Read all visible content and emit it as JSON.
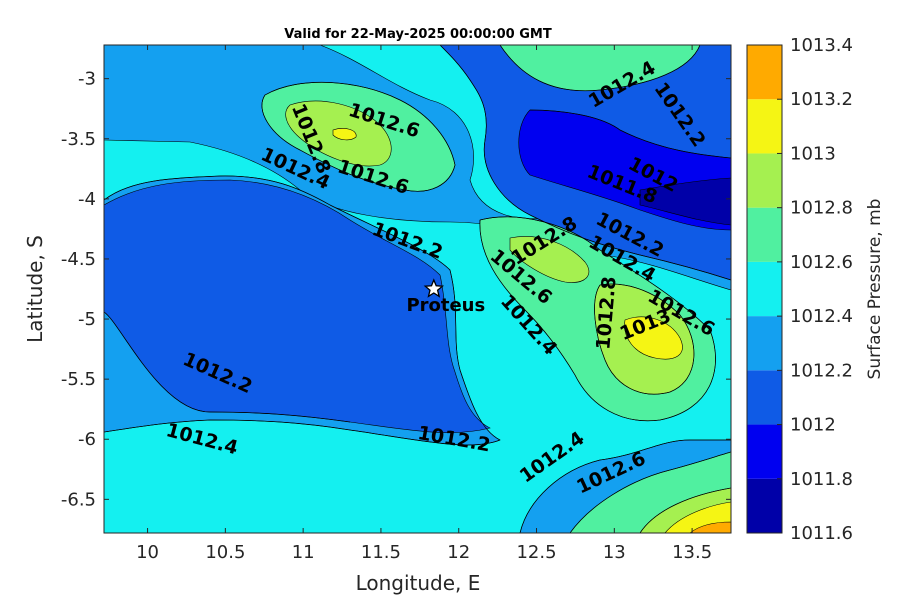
{
  "chart_data": {
    "type": "heatmap",
    "subtype": "filled-contour",
    "title": "Valid for 22-May-2025 00:00:00 GMT",
    "xlabel": "Longitude, E",
    "ylabel": "Latitude, S",
    "xlim": [
      9.72,
      13.75
    ],
    "ylim": [
      -6.78,
      -2.72
    ],
    "xticks": [
      10,
      10.5,
      11,
      11.5,
      12,
      12.5,
      13,
      13.5
    ],
    "xtick_labels": [
      "10",
      "10.5",
      "11",
      "11.5",
      "12",
      "12.5",
      "13",
      "13.5"
    ],
    "yticks": [
      -3,
      -3.5,
      -4,
      -4.5,
      -5,
      -5.5,
      -6,
      -6.5
    ],
    "ytick_labels": [
      "-3",
      "-3.5",
      "-4",
      "-4.5",
      "-5",
      "-5.5",
      "-6",
      "-6.5"
    ],
    "colorbar": {
      "label": "Surface Pressure, mb",
      "levels": [
        1011.6,
        1011.8,
        1012,
        1012.2,
        1012.4,
        1012.6,
        1012.8,
        1013,
        1013.2,
        1013.4
      ],
      "level_labels": [
        "1011.6",
        "1011.8",
        "1012",
        "1012.2",
        "1012.4",
        "1012.6",
        "1012.8",
        "1013",
        "1013.2",
        "1013.4"
      ],
      "colors": [
        "#0000a8",
        "#0000f0",
        "#0f5be6",
        "#14a0f0",
        "#14f0f0",
        "#50f0a0",
        "#a5f050",
        "#f5f514",
        "#ffaa00",
        "#ff5a00"
      ]
    },
    "marker": {
      "label": "Proteus",
      "lon": 11.84,
      "lat": -4.75,
      "symbol": "star"
    },
    "contour_labels": [
      {
        "text": "1012.4",
        "lon": 13.05,
        "lat": -3.05,
        "angle": -30
      },
      {
        "text": "1012.2",
        "lon": 13.42,
        "lat": -3.3,
        "angle": 55
      },
      {
        "text": "1012.8",
        "lon": 11.05,
        "lat": -3.5,
        "angle": 68
      },
      {
        "text": "1012.6",
        "lon": 11.52,
        "lat": -3.35,
        "angle": 18
      },
      {
        "text": "1012.4",
        "lon": 10.95,
        "lat": -3.75,
        "angle": 25
      },
      {
        "text": "1012.6",
        "lon": 11.45,
        "lat": -3.82,
        "angle": 18
      },
      {
        "text": "1012",
        "lon": 13.25,
        "lat": -3.8,
        "angle": 28
      },
      {
        "text": "1011.8",
        "lon": 13.05,
        "lat": -3.88,
        "angle": 22
      },
      {
        "text": "1012.2",
        "lon": 11.67,
        "lat": -4.35,
        "angle": 20
      },
      {
        "text": "1012.8",
        "lon": 12.55,
        "lat": -4.35,
        "angle": -32
      },
      {
        "text": "1012.6",
        "lon": 12.4,
        "lat": -4.65,
        "angle": 40
      },
      {
        "text": "1012.2",
        "lon": 13.1,
        "lat": -4.3,
        "angle": 28
      },
      {
        "text": "1012.4",
        "lon": 13.05,
        "lat": -4.5,
        "angle": 30
      },
      {
        "text": "1012.6",
        "lon": 13.43,
        "lat": -4.95,
        "angle": 30
      },
      {
        "text": "1012.8",
        "lon": 12.95,
        "lat": -4.95,
        "angle": -85
      },
      {
        "text": "1013",
        "lon": 13.2,
        "lat": -5.05,
        "angle": -22
      },
      {
        "text": "1012.4",
        "lon": 12.45,
        "lat": -5.05,
        "angle": 48
      },
      {
        "text": "1012.2",
        "lon": 10.45,
        "lat": -5.45,
        "angle": 24
      },
      {
        "text": "1012.2",
        "lon": 11.97,
        "lat": -6.0,
        "angle": 10
      },
      {
        "text": "1012.4",
        "lon": 10.35,
        "lat": -6.0,
        "angle": 15
      },
      {
        "text": "1012.4",
        "lon": 12.6,
        "lat": -6.15,
        "angle": -35
      },
      {
        "text": "1012.6",
        "lon": 12.98,
        "lat": -6.28,
        "angle": -25
      }
    ]
  }
}
